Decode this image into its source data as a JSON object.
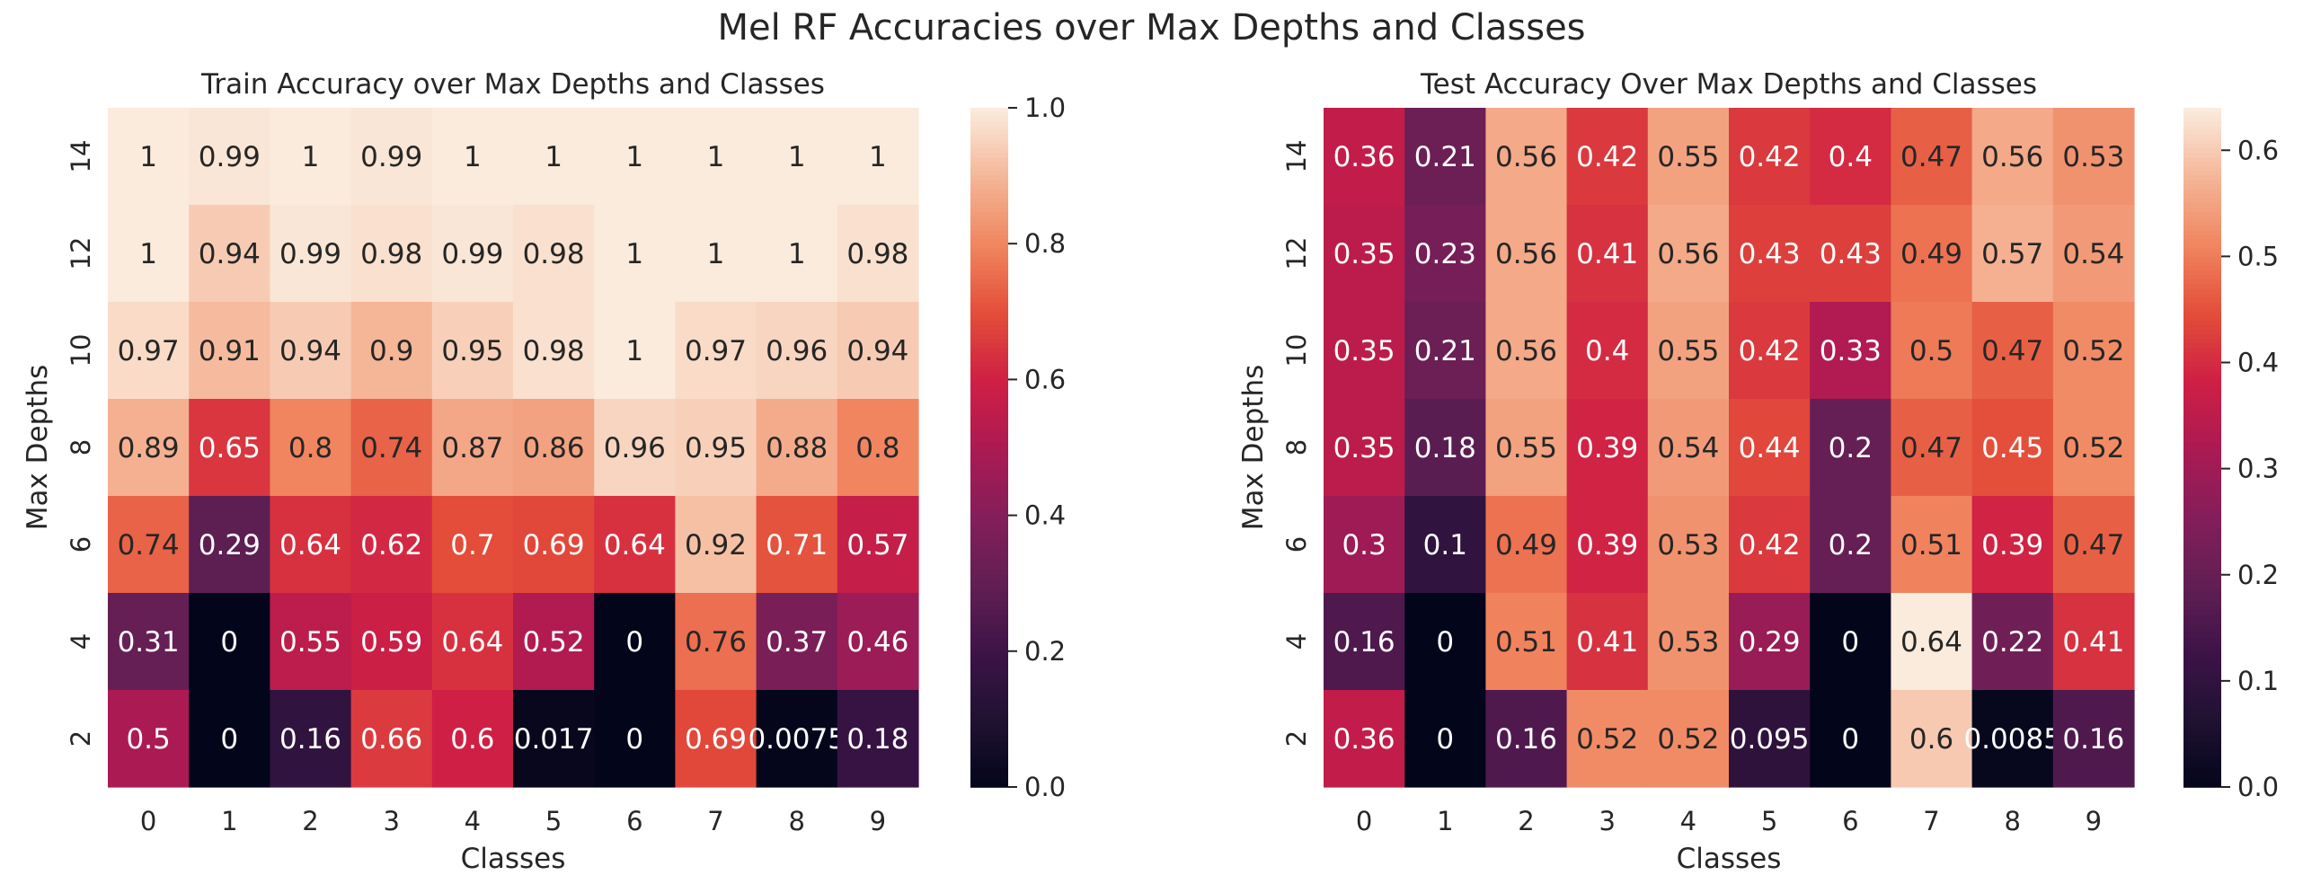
{
  "figure": {
    "title": "Mel RF Accuracies over Max Depths and Classes"
  },
  "chart_data": [
    {
      "type": "heatmap",
      "title": "Train Accuracy over Max Depths and Classes",
      "xlabel": "Classes",
      "ylabel": "Max Depths",
      "x_labels": [
        "0",
        "1",
        "2",
        "3",
        "4",
        "5",
        "6",
        "7",
        "8",
        "9"
      ],
      "y_labels": [
        "14",
        "12",
        "10",
        "8",
        "6",
        "4",
        "2"
      ],
      "values": [
        [
          1,
          0.99,
          1,
          0.99,
          1,
          1,
          1,
          1,
          1,
          1
        ],
        [
          1,
          0.94,
          0.99,
          0.98,
          0.99,
          0.98,
          1,
          1,
          1,
          0.98
        ],
        [
          0.97,
          0.91,
          0.94,
          0.9,
          0.95,
          0.98,
          1,
          0.97,
          0.96,
          0.94
        ],
        [
          0.89,
          0.65,
          0.8,
          0.74,
          0.87,
          0.86,
          0.96,
          0.95,
          0.88,
          0.8
        ],
        [
          0.74,
          0.29,
          0.64,
          0.62,
          0.7,
          0.69,
          0.64,
          0.92,
          0.71,
          0.57
        ],
        [
          0.31,
          0,
          0.55,
          0.59,
          0.64,
          0.52,
          0,
          0.76,
          0.37,
          0.46
        ],
        [
          0.5,
          0,
          0.16,
          0.66,
          0.6,
          0.017,
          0,
          0.69,
          0.0075,
          0.18
        ]
      ],
      "vmin": 0,
      "vmax": 1.0,
      "colorbar_ticks": [
        "0.0",
        "0.2",
        "0.4",
        "0.6",
        "0.8",
        "1.0"
      ],
      "colormap": "rocket"
    },
    {
      "type": "heatmap",
      "title": "Test Accuracy Over Max Depths and Classes",
      "xlabel": "Classes",
      "ylabel": "Max Depths",
      "x_labels": [
        "0",
        "1",
        "2",
        "3",
        "4",
        "5",
        "6",
        "7",
        "8",
        "9"
      ],
      "y_labels": [
        "14",
        "12",
        "10",
        "8",
        "6",
        "4",
        "2"
      ],
      "values": [
        [
          0.36,
          0.21,
          0.56,
          0.42,
          0.55,
          0.42,
          0.4,
          0.47,
          0.56,
          0.53
        ],
        [
          0.35,
          0.23,
          0.56,
          0.41,
          0.56,
          0.43,
          0.43,
          0.49,
          0.57,
          0.54
        ],
        [
          0.35,
          0.21,
          0.56,
          0.4,
          0.55,
          0.42,
          0.33,
          0.5,
          0.47,
          0.52
        ],
        [
          0.35,
          0.18,
          0.55,
          0.39,
          0.54,
          0.44,
          0.2,
          0.47,
          0.45,
          0.52
        ],
        [
          0.3,
          0.1,
          0.49,
          0.39,
          0.53,
          0.42,
          0.2,
          0.51,
          0.39,
          0.47
        ],
        [
          0.16,
          0,
          0.51,
          0.41,
          0.53,
          0.29,
          0,
          0.64,
          0.22,
          0.41
        ],
        [
          0.36,
          0,
          0.16,
          0.52,
          0.52,
          0.095,
          0,
          0.6,
          0.0085,
          0.16
        ]
      ],
      "vmin": 0,
      "vmax": 0.64,
      "colorbar_ticks": [
        "0.0",
        "0.1",
        "0.2",
        "0.3",
        "0.4",
        "0.5",
        "0.6"
      ],
      "colormap": "rocket"
    }
  ]
}
